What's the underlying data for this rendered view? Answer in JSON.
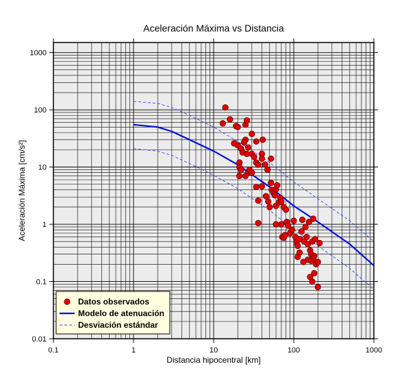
{
  "chart_data": {
    "type": "scatter",
    "title": "Aceleración Máxima vs Distancia",
    "xlabel": "Distancia hipocentral [km]",
    "ylabel": "Aceleración Máxima [cm/s²]",
    "xscale": "log",
    "yscale": "log",
    "xlim": [
      0.1,
      1000
    ],
    "ylim": [
      0.01,
      1500
    ],
    "xticks": [
      "0.1",
      "1",
      "10",
      "100",
      "1000"
    ],
    "yticks": [
      "0.01",
      "0.1",
      "1",
      "10",
      "100",
      "1000"
    ],
    "grid": true,
    "legend_position": "bottom-left",
    "colors": {
      "plot_bg": "#ececec",
      "points": "#e00000",
      "model": "#0010d8",
      "std": "#3040ff",
      "legend_bg": "#ffffe0"
    },
    "series": [
      {
        "name": "Datos observados",
        "kind": "scatter",
        "points": [
          [
            14,
            110
          ],
          [
            13,
            58
          ],
          [
            16,
            68
          ],
          [
            19,
            52
          ],
          [
            20,
            50
          ],
          [
            18,
            26
          ],
          [
            20,
            24
          ],
          [
            25,
            55
          ],
          [
            26,
            65
          ],
          [
            22,
            21
          ],
          [
            23,
            18
          ],
          [
            25,
            30
          ],
          [
            24,
            27
          ],
          [
            27,
            22
          ],
          [
            30,
            38
          ],
          [
            34,
            28
          ],
          [
            41,
            30
          ],
          [
            21,
            12
          ],
          [
            21,
            10
          ],
          [
            22,
            9
          ],
          [
            26,
            17
          ],
          [
            30,
            17
          ],
          [
            32,
            15
          ],
          [
            34,
            12
          ],
          [
            36,
            11
          ],
          [
            40,
            17
          ],
          [
            40,
            14
          ],
          [
            44,
            11
          ],
          [
            52,
            14
          ],
          [
            47,
            9
          ],
          [
            21,
            7
          ],
          [
            25,
            7
          ],
          [
            27,
            8
          ],
          [
            28,
            9
          ],
          [
            30,
            8
          ],
          [
            34,
            4.5
          ],
          [
            36,
            2.6
          ],
          [
            40,
            4.6
          ],
          [
            45,
            3.1
          ],
          [
            48,
            2.5
          ],
          [
            50,
            2.0
          ],
          [
            52,
            5.3
          ],
          [
            53,
            4.0
          ],
          [
            56,
            3.5
          ],
          [
            58,
            3.2
          ],
          [
            60,
            4.1
          ],
          [
            62,
            4.8
          ],
          [
            60,
            2.1
          ],
          [
            65,
            2.4
          ],
          [
            68,
            2.9
          ],
          [
            70,
            2.5
          ],
          [
            75,
            2.0
          ],
          [
            80,
            1.8
          ],
          [
            36,
            1.05
          ],
          [
            60,
            1.0
          ],
          [
            70,
            1.0
          ],
          [
            72,
            0.6
          ],
          [
            75,
            0.58
          ],
          [
            78,
            0.65
          ],
          [
            82,
            1.1
          ],
          [
            85,
            0.95
          ],
          [
            90,
            0.7
          ],
          [
            95,
            0.8
          ],
          [
            100,
            1.15
          ],
          [
            105,
            0.6
          ],
          [
            108,
            0.48
          ],
          [
            112,
            0.42
          ],
          [
            120,
            0.55
          ],
          [
            125,
            0.75
          ],
          [
            128,
            1.2
          ],
          [
            135,
            0.5
          ],
          [
            140,
            0.9
          ],
          [
            145,
            0.6
          ],
          [
            150,
            0.45
          ],
          [
            155,
            1.1
          ],
          [
            160,
            0.35
          ],
          [
            165,
            0.3
          ],
          [
            170,
            0.5
          ],
          [
            175,
            1.25
          ],
          [
            180,
            0.28
          ],
          [
            185,
            0.55
          ],
          [
            190,
            0.2
          ],
          [
            200,
            0.22
          ],
          [
            150,
            0.24
          ],
          [
            160,
            0.12
          ],
          [
            170,
            0.1
          ],
          [
            180,
            0.14
          ],
          [
            200,
            0.08
          ],
          [
            175,
            0.25
          ],
          [
            165,
            0.23
          ],
          [
            210,
            0.47
          ],
          [
            118,
            0.32
          ],
          [
            112,
            0.27
          ],
          [
            132,
            0.22
          ]
        ]
      },
      {
        "name": "Modelo de atenuación",
        "kind": "line",
        "points": [
          [
            1,
            55
          ],
          [
            2,
            50
          ],
          [
            3,
            42
          ],
          [
            5,
            30
          ],
          [
            10,
            19
          ],
          [
            20,
            11
          ],
          [
            50,
            4.5
          ],
          [
            100,
            2.1
          ],
          [
            200,
            1.1
          ],
          [
            500,
            0.45
          ],
          [
            1000,
            0.19
          ]
        ]
      },
      {
        "name": "Desviación estándar",
        "kind": "dashed",
        "points_upper": [
          [
            1,
            140
          ],
          [
            2,
            130
          ],
          [
            3,
            110
          ],
          [
            5,
            80
          ],
          [
            10,
            50
          ],
          [
            20,
            28
          ],
          [
            50,
            12
          ],
          [
            100,
            5.5
          ],
          [
            200,
            2.8
          ],
          [
            500,
            1.15
          ],
          [
            1000,
            0.5
          ]
        ],
        "points_lower": [
          [
            1,
            21
          ],
          [
            2,
            19
          ],
          [
            3,
            16
          ],
          [
            5,
            11.5
          ],
          [
            10,
            7.2
          ],
          [
            20,
            4.2
          ],
          [
            50,
            1.75
          ],
          [
            100,
            0.8
          ],
          [
            200,
            0.42
          ],
          [
            500,
            0.17
          ],
          [
            1000,
            0.072
          ]
        ]
      }
    ]
  }
}
